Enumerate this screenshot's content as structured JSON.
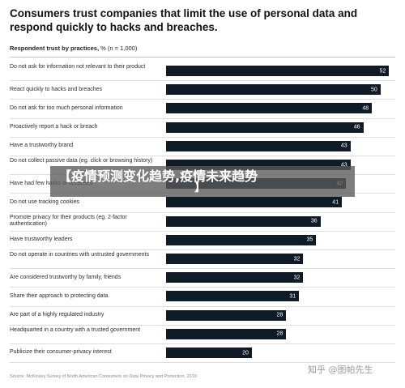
{
  "header": {
    "title": "Consumers trust companies that limit the use of personal data and respond quickly to hacks and breaches.",
    "subtitle_bold": "Respondent trust by practices,",
    "subtitle_rest": " % (n = 1,000)"
  },
  "source": "Source: McKinsey Survey of North American Consumers on Data Privacy and Protection, 2019",
  "overlay": {
    "line1": "【疫情预测变化趋势,疫情未来趋势",
    "line2": "】"
  },
  "watermark": "知乎 @图帕先生",
  "colors": {
    "bar": "#0f1b26",
    "bar_text": "#ffffff"
  },
  "chart_data": {
    "type": "bar",
    "orientation": "horizontal",
    "title": "Consumers trust companies that limit the use of personal data and respond quickly to hacks and breaches.",
    "xlim": [
      0,
      55
    ],
    "categories": [
      "Do not ask for information not relevant to their product",
      "React quickly to hacks and breaches",
      "Do not ask for too much personal information",
      "Proactively report a hack or breach",
      "Have a trustworthy brand",
      "Do not collect passive data (eg. click or browsing history)",
      "Have had few hacks or breaches",
      "Do not use tracking cookies",
      "Promote privacy for their products (eg. 2-factor authentication)",
      "Have trustworthy leaders",
      "Do not operate in countries with untrusted governments",
      "Are considered trustworthy by family, friends",
      "Share their approach to protecting data",
      "Are part of a highly regulated industry",
      "Headquarted in a country with a trusted government",
      "Publicize their consumer-privacy interest"
    ],
    "values": [
      52,
      50,
      48,
      46,
      43,
      43,
      42,
      41,
      36,
      35,
      32,
      32,
      31,
      28,
      28,
      20
    ]
  }
}
